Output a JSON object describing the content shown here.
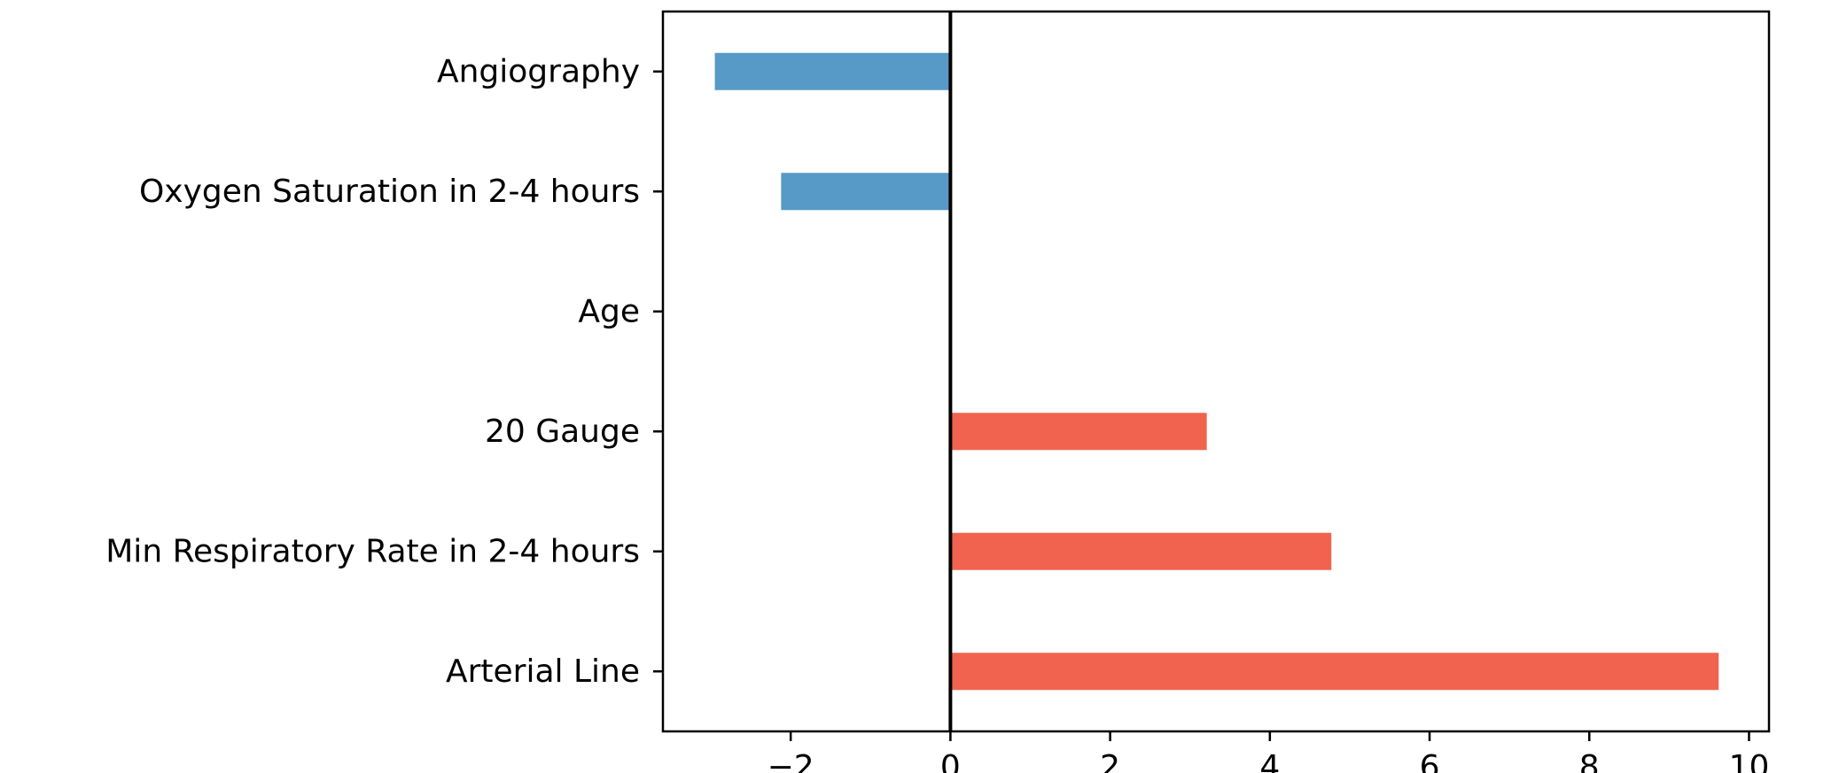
{
  "chart_data": {
    "type": "bar",
    "orientation": "horizontal",
    "categories": [
      "Angiography",
      "Oxygen Saturation in 2-4 hours",
      "Age",
      "20 Gauge",
      "Min Respiratory Rate in 2-4 hours",
      "Arterial Line"
    ],
    "values": [
      -2.95,
      -2.12,
      0.0,
      3.21,
      4.77,
      9.62
    ],
    "xlim": [
      -3.6,
      10.25
    ],
    "xticks": [
      -2,
      0,
      2,
      4,
      6,
      8,
      10
    ],
    "xtick_labels": [
      "−2",
      "0",
      "2",
      "4",
      "6",
      "8",
      "10"
    ],
    "title": "",
    "xlabel": "",
    "ylabel": "",
    "grid": false,
    "zero_line": true,
    "colors": {
      "positive": "#f1634e",
      "negative": "#5799c7",
      "axis": "#000000"
    }
  }
}
